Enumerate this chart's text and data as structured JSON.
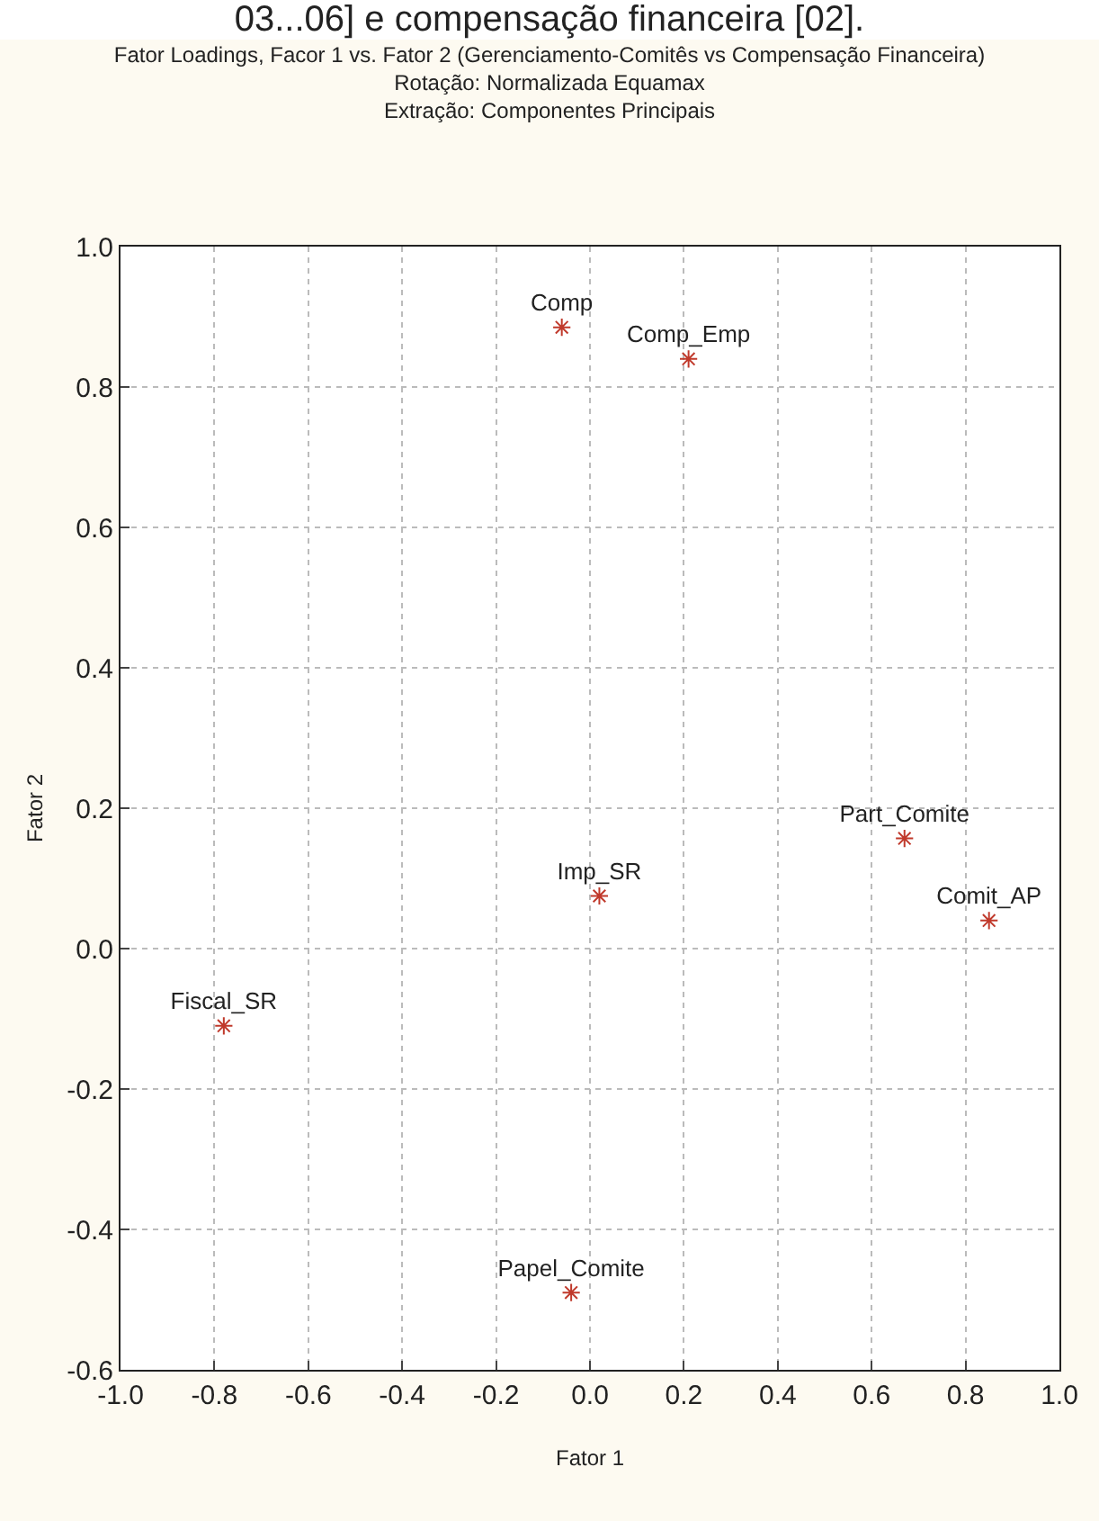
{
  "chart_data": {
    "type": "scatter",
    "title": "Fator Loadings, Facor 1 vs. Fator 2 (Gerenciamento-Comitês vs Compensação Financeira)",
    "subtitle": "Rotação: Normalizada Equamax\nExtração: Componentes Principais",
    "annotations": [
      "03...06] e compensação financeira [02]."
    ],
    "xlabel": "Fator 1",
    "ylabel": "Fator 2",
    "series": [
      {
        "name": "Comp",
        "color": "#c0392b",
        "x": [
          -0.06
        ],
        "values": [
          0.885
        ]
      },
      {
        "name": "Comp_Emp",
        "color": "#c0392b",
        "x": [
          0.21
        ],
        "values": [
          0.84
        ]
      },
      {
        "name": "Imp_SR",
        "color": "#c0392b",
        "x": [
          0.02
        ],
        "values": [
          0.075
        ]
      },
      {
        "name": "Part_Comite",
        "color": "#c0392b",
        "x": [
          0.67
        ],
        "values": [
          0.157
        ]
      },
      {
        "name": "Comit_AP",
        "color": "#c0392b",
        "x": [
          0.85
        ],
        "values": [
          0.04
        ]
      },
      {
        "name": "Fiscal_SR",
        "color": "#c0392b",
        "x": [
          -0.78
        ],
        "values": [
          -0.11
        ]
      },
      {
        "name": "Papel_Comite",
        "color": "#c0392b",
        "x": [
          -0.04
        ],
        "values": [
          -0.49
        ]
      }
    ],
    "xlim": [
      -1.0,
      1.0
    ],
    "xticks": [
      {
        "value": -1,
        "label": "-1.0"
      },
      -0.8,
      -0.6,
      -0.4,
      -0.2,
      {
        "value": 0,
        "label": "0.0"
      },
      0.2,
      0.4,
      0.6,
      0.8,
      {
        "value": 1,
        "label": "1.0"
      }
    ],
    "ylim": [
      -0.6,
      1.0
    ],
    "yticks": [
      -0.6,
      -0.4,
      -0.2,
      {
        "value": 0,
        "label": "0.0"
      },
      0.2,
      0.4,
      0.6,
      0.8,
      {
        "value": 1,
        "label": "1.0"
      }
    ],
    "grid": true,
    "marker": "cross",
    "legend": false
  }
}
